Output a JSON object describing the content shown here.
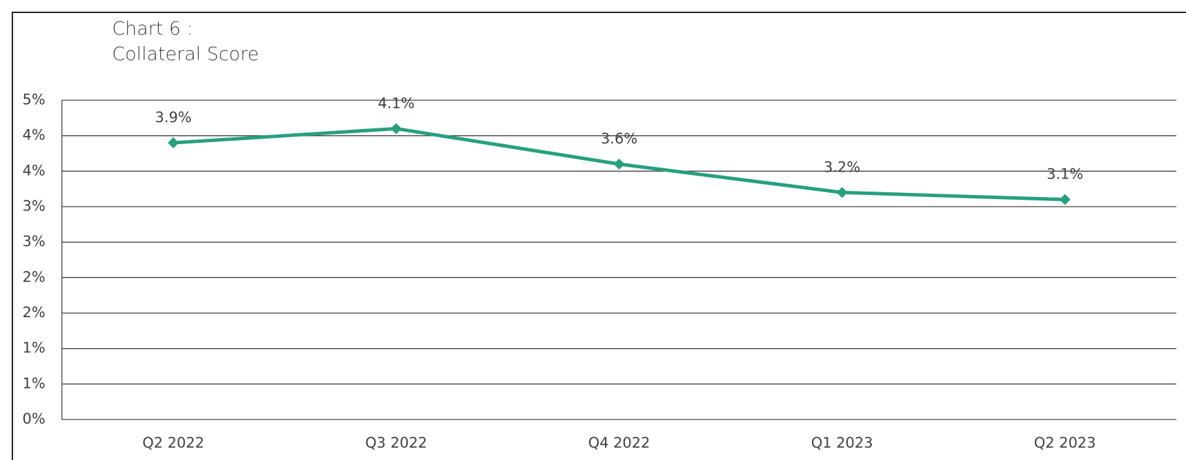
{
  "chart_data": {
    "type": "line",
    "title": "Chart 6 :",
    "subtitle": "Collateral Score",
    "categories": [
      "Q2 2022",
      "Q3 2022",
      "Q4 2022",
      "Q1 2023",
      "Q2 2023"
    ],
    "series": [
      {
        "name": "Collateral Score",
        "color": "#26a07f",
        "values": [
          3.9,
          4.1,
          3.6,
          3.2,
          3.1
        ],
        "value_labels": [
          "3.9%",
          "4.1%",
          "3.6%",
          "3.2%",
          "3.1%"
        ]
      }
    ],
    "ylim": [
      0,
      4.5
    ],
    "yticks": [
      {
        "value": 0,
        "label": "0%"
      },
      {
        "value": 0.5,
        "label": "1%"
      },
      {
        "value": 1,
        "label": "1%"
      },
      {
        "value": 1.5,
        "label": "2%"
      },
      {
        "value": 2,
        "label": "2%"
      },
      {
        "value": 2.5,
        "label": "3%"
      },
      {
        "value": 3,
        "label": "3%"
      },
      {
        "value": 3.5,
        "label": "4%"
      },
      {
        "value": 4,
        "label": "4%"
      },
      {
        "value": 4.5,
        "label": "5%"
      }
    ],
    "grid": true
  }
}
